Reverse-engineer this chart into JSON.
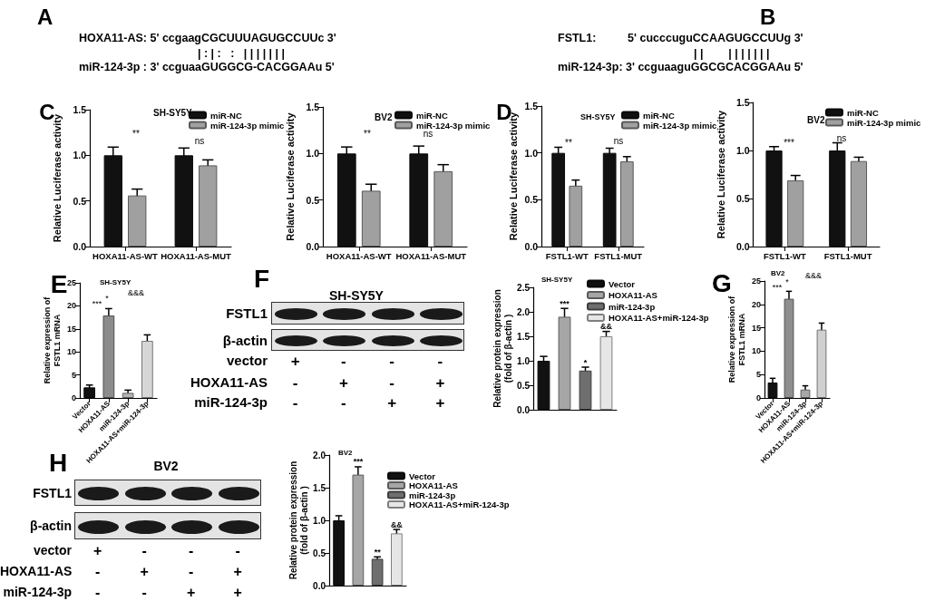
{
  "chart_data": [
    {
      "type": "other",
      "annotations": [
        "A",
        "HOXA11-AS: 5' ccgaagCGCUUUAGUGCCUUc 3'",
        "| : | :   :   | | | | | | |",
        "miR-124-3p : 3' ccguaaGUGGCG-CACGGAAu 5'"
      ]
    },
    {
      "type": "other",
      "annotations": [
        "B",
        "FSTL1:          5' cucccuguCCAAGUGCCUUg 3'",
        "| |        | | | | | | |",
        "miR-124-3p: 3' ccguaaguGGCGCACGGAAu 5'"
      ]
    },
    {
      "type": "bar",
      "subtitle": "SH-SY5Y",
      "ylabel": "Relative Luciferase activity",
      "categories": [
        "HOXA11-AS-WT",
        "HOXA11-AS-MUT"
      ],
      "series": [
        {
          "name": "miR-NC",
          "color": "#111111",
          "values": [
            1.0,
            1.0
          ],
          "errors": [
            0.09,
            0.08
          ]
        },
        {
          "name": "miR-124-3p mimic",
          "color": "#a0a0a0",
          "values": [
            0.56,
            0.89
          ],
          "errors": [
            0.07,
            0.06
          ]
        }
      ],
      "ylim": [
        0,
        1.5
      ],
      "yticks": [
        {
          "value": 0,
          "label": "0.0"
        },
        {
          "value": 0.5,
          "label": "0.5"
        },
        {
          "value": 1,
          "label": "1.0"
        },
        {
          "value": 1.5,
          "label": "1.5"
        }
      ],
      "legend": "top right",
      "annotations": [
        "C",
        "**",
        "ns"
      ]
    },
    {
      "type": "bar",
      "subtitle": "BV2",
      "ylabel": "Relative Luciferase activity",
      "categories": [
        "HOXA11-AS-WT",
        "HOXA11-AS-MUT"
      ],
      "series": [
        {
          "name": "miR-NC",
          "color": "#111111",
          "values": [
            1.0,
            1.0
          ],
          "errors": [
            0.07,
            0.08
          ]
        },
        {
          "name": "miR-124-3p mimic",
          "color": "#a0a0a0",
          "values": [
            0.6,
            0.81
          ],
          "errors": [
            0.07,
            0.07
          ]
        }
      ],
      "ylim": [
        0,
        1.5
      ],
      "yticks": [
        {
          "value": 0,
          "label": "0.0"
        },
        {
          "value": 0.5,
          "label": "0.5"
        },
        {
          "value": 1,
          "label": "1.0"
        },
        {
          "value": 1.5,
          "label": "1.5"
        }
      ],
      "legend": "top right",
      "annotations": [
        "**",
        "ns"
      ]
    },
    {
      "type": "bar",
      "subtitle": "SH-SY5Y",
      "ylabel": "Relative Luciferase activity",
      "categories": [
        "FSTL1-WT",
        "FSTL1-MUT"
      ],
      "series": [
        {
          "name": "miR-NC",
          "color": "#111111",
          "values": [
            1.0,
            1.0
          ],
          "errors": [
            0.06,
            0.05
          ]
        },
        {
          "name": "miR-124-3p mimic",
          "color": "#a0a0a0",
          "values": [
            0.65,
            0.91
          ],
          "errors": [
            0.06,
            0.05
          ]
        }
      ],
      "ylim": [
        0,
        1.5
      ],
      "yticks": [
        {
          "value": 0,
          "label": "0.0"
        },
        {
          "value": 0.5,
          "label": "0.5"
        },
        {
          "value": 1,
          "label": "1.0"
        },
        {
          "value": 1.5,
          "label": "1.5"
        }
      ],
      "legend": "top right",
      "annotations": [
        "D",
        "**",
        "ns"
      ]
    },
    {
      "type": "bar",
      "subtitle": "BV2",
      "ylabel": "Relative Luciferase activity",
      "categories": [
        "FSTL1-WT",
        "FSTL1-MUT"
      ],
      "series": [
        {
          "name": "miR-NC",
          "color": "#111111",
          "values": [
            1.0,
            1.0
          ],
          "errors": [
            0.04,
            0.08
          ]
        },
        {
          "name": "miR-124-3p mimic",
          "color": "#a0a0a0",
          "values": [
            0.69,
            0.89
          ],
          "errors": [
            0.05,
            0.04
          ]
        }
      ],
      "ylim": [
        0,
        1.5
      ],
      "yticks": [
        {
          "value": 0,
          "label": "0.0"
        },
        {
          "value": 0.5,
          "label": "0.5"
        },
        {
          "value": 1,
          "label": "1.0"
        },
        {
          "value": 1.5,
          "label": "1.5"
        }
      ],
      "legend": "top right",
      "annotations": [
        "***",
        "ns"
      ]
    },
    {
      "type": "bar",
      "subtitle": "SH-SY5Y",
      "ylabel": "Relative expression of\nFSTL1 mRNA",
      "categories": [
        "Vector",
        "HOXA11-AS",
        "miR-124-3p",
        "HOXA11-AS+miR-124-3p"
      ],
      "values": [
        2.3,
        17.9,
        1.1,
        12.4
      ],
      "errors": [
        0.5,
        1.5,
        0.6,
        1.3
      ],
      "colors": [
        "#111111",
        "#8c8c8c",
        "#b4b4b4",
        "#d6d6d6"
      ],
      "ylim": [
        0,
        25
      ],
      "yticks": [
        0,
        5,
        10,
        15,
        20,
        25
      ],
      "annotations": [
        "E",
        "***",
        "*",
        "&&&"
      ]
    },
    {
      "type": "other",
      "title": "SH-SY5Y",
      "annotations": [
        "F",
        "FSTL1",
        "β-actin"
      ],
      "y_categories": [
        "vector",
        "HOXA11-AS",
        "miR-124-3p"
      ],
      "cell_labels": [
        [
          "+",
          "-",
          "-",
          "-"
        ],
        [
          "-",
          "+",
          "-",
          "+"
        ],
        [
          "-",
          "-",
          "+",
          "+"
        ]
      ]
    },
    {
      "type": "bar",
      "subtitle": "SH-SY5Y",
      "ylabel": "Relative protein expression\n(fold of β-actin )",
      "categories": [
        null,
        null,
        null,
        null
      ],
      "tick_labels": "y",
      "series": [
        {
          "name": "Vector",
          "color": "#111111",
          "values": [
            1.0,
            null,
            null,
            null
          ],
          "errors": [
            0.09,
            null,
            null,
            null
          ]
        },
        {
          "name": "HOXA11-AS",
          "color": "#a6a6a6",
          "values": [
            null,
            1.9,
            null,
            null
          ],
          "errors": [
            null,
            0.17,
            null,
            null
          ],
          "value_labels": [
            null,
            "***",
            null,
            null
          ]
        },
        {
          "name": "miR-124-3p",
          "color": "#6e6e6e",
          "values": [
            null,
            null,
            0.8,
            null
          ],
          "errors": [
            null,
            null,
            0.07,
            null
          ],
          "value_labels": [
            null,
            null,
            "*",
            null
          ]
        },
        {
          "name": "HOXA11-AS+miR-124-3p",
          "color": "#e6e6e6",
          "values": [
            null,
            null,
            null,
            1.5
          ],
          "errors": [
            null,
            null,
            null,
            0.1
          ],
          "value_labels": [
            null,
            null,
            null,
            "&&"
          ]
        }
      ],
      "ylim": [
        0,
        2.5
      ],
      "yticks": [
        {
          "value": 0,
          "label": "0.0"
        },
        {
          "value": 0.5,
          "label": "0.5"
        },
        {
          "value": 1,
          "label": "1.0"
        },
        {
          "value": 1.5,
          "label": "1.5"
        },
        {
          "value": 2,
          "label": "2.0"
        },
        {
          "value": 2.5,
          "label": "2.5"
        }
      ],
      "legend": "top right"
    },
    {
      "type": "bar",
      "subtitle": "BV2",
      "ylabel": "Relative expression of\nFSTL1 mRNA",
      "categories": [
        "Vector",
        "HOXA11-AS",
        "miR-124-3p",
        "HOXA11-AS+miR-124-3p"
      ],
      "values": [
        3.3,
        21.2,
        1.8,
        14.6
      ],
      "errors": [
        0.9,
        1.6,
        0.8,
        1.4
      ],
      "colors": [
        "#111111",
        "#8f8f8f",
        "#a8a8a8",
        "#d0d0d0"
      ],
      "ylim": [
        0,
        25
      ],
      "yticks": [
        0,
        5,
        10,
        15,
        20,
        25
      ],
      "annotations": [
        "G",
        "***",
        "*",
        "&&&"
      ]
    },
    {
      "type": "other",
      "title": "BV2",
      "annotations": [
        "H",
        "FSTL1",
        "β-actin"
      ],
      "y_categories": [
        "vector",
        "HOXA11-AS",
        "miR-124-3p"
      ],
      "cell_labels": [
        [
          "+",
          "-",
          "-",
          "-"
        ],
        [
          "-",
          "+",
          "-",
          "+"
        ],
        [
          "-",
          "-",
          "+",
          "+"
        ]
      ]
    },
    {
      "type": "bar",
      "subtitle": "BV2",
      "ylabel": "Relative protein expression\n(fold of β-actin )",
      "categories": [
        null,
        null,
        null,
        null
      ],
      "tick_labels": "y",
      "series": [
        {
          "name": "Vector",
          "color": "#111111",
          "values": [
            1.0,
            null,
            null,
            null
          ],
          "errors": [
            0.07,
            null,
            null,
            null
          ]
        },
        {
          "name": "HOXA11-AS",
          "color": "#a6a6a6",
          "values": [
            null,
            1.7,
            null,
            null
          ],
          "errors": [
            null,
            0.12,
            null,
            null
          ],
          "value_labels": [
            null,
            "***",
            null,
            null
          ]
        },
        {
          "name": "miR-124-3p",
          "color": "#6e6e6e",
          "values": [
            null,
            null,
            0.41,
            null
          ],
          "errors": [
            null,
            null,
            0.03,
            null
          ],
          "value_labels": [
            null,
            null,
            "**",
            null
          ]
        },
        {
          "name": "HOXA11-AS+miR-124-3p",
          "color": "#e6e6e6",
          "values": [
            null,
            null,
            null,
            0.8
          ],
          "errors": [
            null,
            null,
            null,
            0.06
          ],
          "value_labels": [
            null,
            null,
            null,
            "&&"
          ]
        }
      ],
      "ylim": [
        0,
        2
      ],
      "yticks": [
        {
          "value": 0,
          "label": "0.0"
        },
        {
          "value": 0.5,
          "label": "0.5"
        },
        {
          "value": 1,
          "label": "1.0"
        },
        {
          "value": 1.5,
          "label": "1.5"
        },
        {
          "value": 2,
          "label": "2.0"
        }
      ],
      "legend": "top right"
    }
  ]
}
